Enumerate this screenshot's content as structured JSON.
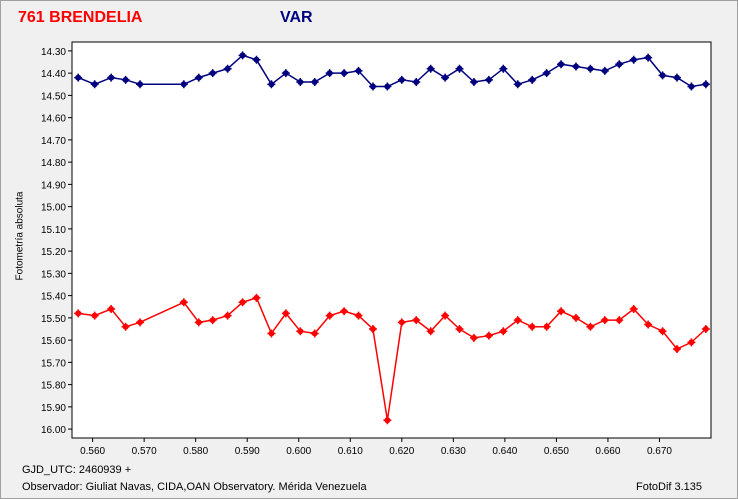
{
  "header": {
    "object": "761 BRENDELIA",
    "var_label": "VAR"
  },
  "footer": {
    "gjd": "GJD_UTC: 2460939 +",
    "observer": "Observador: Giuliat Navas, CIDA,OAN Observatory. Mérida Venezuela",
    "software": "FotoDif 3.135"
  },
  "colors": {
    "var": "#00007f",
    "comp": "#ff0000",
    "title": "#ff0000",
    "var_title": "#00007f"
  },
  "chart_data": {
    "type": "line",
    "xlabel": "",
    "ylabel": "Fotometría absoluta",
    "xlim": [
      0.556,
      0.68
    ],
    "ylim": [
      16.04,
      14.26
    ],
    "y_inverted": true,
    "grid": false,
    "x_ticks": [
      0.56,
      0.57,
      0.58,
      0.59,
      0.6,
      0.61,
      0.62,
      0.63,
      0.64,
      0.65,
      0.66,
      0.67
    ],
    "x_tick_labels": [
      "0.560",
      "0.570",
      "0.580",
      "0.590",
      "0.600",
      "0.610",
      "0.620",
      "0.630",
      "0.640",
      "0.650",
      "0.660",
      "0.670"
    ],
    "y_ticks": [
      14.3,
      14.4,
      14.5,
      14.6,
      14.7,
      14.8,
      14.9,
      15.0,
      15.1,
      15.2,
      15.3,
      15.4,
      15.5,
      15.6,
      15.7,
      15.8,
      15.9,
      16.0
    ],
    "y_tick_labels": [
      "14.30",
      "14.40",
      "14.50",
      "14.60",
      "14.70",
      "14.80",
      "14.90",
      "15.00",
      "15.10",
      "15.20",
      "15.30",
      "15.40",
      "15.50",
      "15.60",
      "15.70",
      "15.80",
      "15.90",
      "16.00"
    ],
    "series": [
      {
        "color": "#00007f",
        "x": [
          0.5572,
          0.5604,
          0.5636,
          0.5664,
          0.5692,
          0.5777,
          0.5806,
          0.5833,
          0.5862,
          0.5891,
          0.5918,
          0.5947,
          0.5975,
          0.6003,
          0.6031,
          0.606,
          0.6088,
          0.6116,
          0.6144,
          0.6172,
          0.62,
          0.6228,
          0.6256,
          0.6284,
          0.6312,
          0.634,
          0.6369,
          0.6397,
          0.6425,
          0.6453,
          0.6481,
          0.6509,
          0.6538,
          0.6566,
          0.6594,
          0.6622,
          0.665,
          0.6678,
          0.6706,
          0.6734,
          0.6762,
          0.679
        ],
        "y": [
          14.42,
          14.45,
          14.42,
          14.43,
          14.45,
          14.45,
          14.42,
          14.4,
          14.38,
          14.32,
          14.34,
          14.45,
          14.4,
          14.44,
          14.44,
          14.4,
          14.4,
          14.39,
          14.46,
          14.46,
          14.43,
          14.44,
          14.38,
          14.42,
          14.38,
          14.44,
          14.43,
          14.38,
          14.45,
          14.43,
          14.4,
          14.36,
          14.37,
          14.38,
          14.39,
          14.36,
          14.34,
          14.33,
          14.41,
          14.42,
          14.46,
          14.45
        ]
      },
      {
        "color": "#ff0000",
        "x": [
          0.5572,
          0.5604,
          0.5636,
          0.5664,
          0.5692,
          0.5777,
          0.5806,
          0.5833,
          0.5862,
          0.5891,
          0.5918,
          0.5947,
          0.5975,
          0.6003,
          0.6031,
          0.606,
          0.6088,
          0.6116,
          0.6144,
          0.6172,
          0.62,
          0.6228,
          0.6256,
          0.6284,
          0.6312,
          0.634,
          0.6369,
          0.6397,
          0.6425,
          0.6453,
          0.6481,
          0.6509,
          0.6538,
          0.6566,
          0.6594,
          0.6622,
          0.665,
          0.6678,
          0.6706,
          0.6734,
          0.6762,
          0.679
        ],
        "y": [
          15.48,
          15.49,
          15.46,
          15.54,
          15.52,
          15.43,
          15.52,
          15.51,
          15.49,
          15.43,
          15.41,
          15.57,
          15.48,
          15.56,
          15.57,
          15.49,
          15.47,
          15.49,
          15.55,
          15.96,
          15.52,
          15.51,
          15.56,
          15.49,
          15.55,
          15.59,
          15.58,
          15.56,
          15.51,
          15.54,
          15.54,
          15.47,
          15.5,
          15.54,
          15.51,
          15.51,
          15.46,
          15.53,
          15.56,
          15.64,
          15.61,
          15.55
        ]
      }
    ]
  }
}
